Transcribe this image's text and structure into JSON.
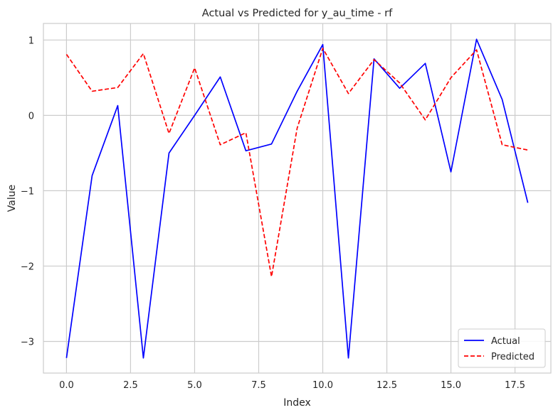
{
  "chart_data": {
    "type": "line",
    "title": "Actual vs Predicted for y_au_time - rf",
    "xlabel": "Index",
    "ylabel": "Value",
    "x": [
      0,
      1,
      2,
      3,
      4,
      5,
      6,
      7,
      8,
      9,
      10,
      11,
      12,
      13,
      14,
      15,
      16,
      17,
      18
    ],
    "xlim": [
      -0.9,
      18.9
    ],
    "ylim": [
      -3.42,
      1.22
    ],
    "xticks": [
      0.0,
      2.5,
      5.0,
      7.5,
      10.0,
      12.5,
      15.0,
      17.5
    ],
    "xtick_labels": [
      "0.0",
      "2.5",
      "5.0",
      "7.5",
      "10.0",
      "12.5",
      "15.0",
      "17.5"
    ],
    "yticks": [
      -3,
      -2,
      -1,
      0,
      1
    ],
    "ytick_labels": [
      "−3",
      "−2",
      "−1",
      "0",
      "1"
    ],
    "grid": true,
    "legend_position": "bottom-right",
    "series": [
      {
        "name": "Actual",
        "color": "#0000ff",
        "style": "solid",
        "values": [
          -3.22,
          -0.8,
          0.13,
          -3.22,
          -0.5,
          0.0,
          0.51,
          -0.47,
          -0.38,
          0.32,
          0.94,
          -3.22,
          0.75,
          0.36,
          0.69,
          -0.75,
          1.01,
          0.21,
          -1.16
        ]
      },
      {
        "name": "Predicted",
        "color": "#ff0000",
        "style": "dashed",
        "values": [
          0.81,
          0.32,
          0.37,
          0.82,
          -0.24,
          0.63,
          -0.39,
          -0.23,
          -2.14,
          -0.17,
          0.89,
          0.29,
          0.74,
          0.43,
          -0.06,
          0.5,
          0.87,
          -0.39,
          -0.46
        ]
      }
    ]
  }
}
